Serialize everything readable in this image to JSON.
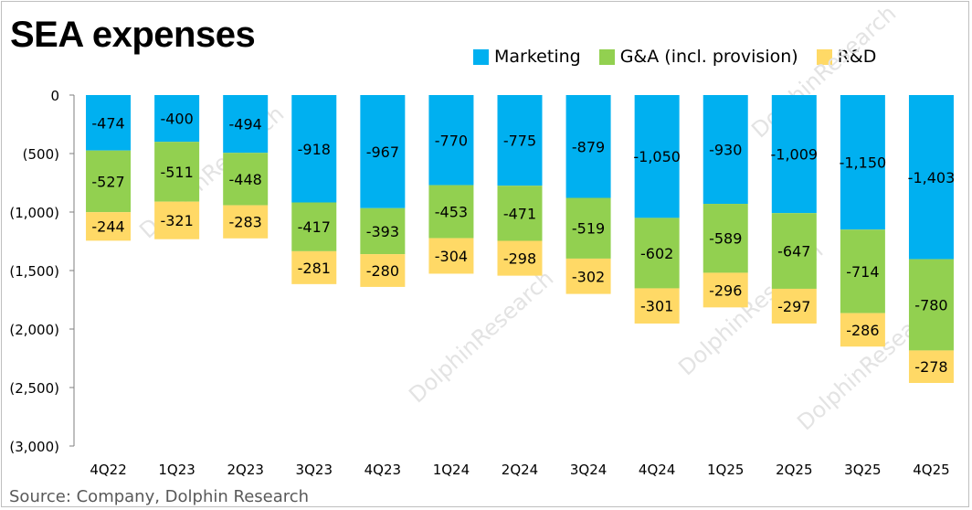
{
  "title": "SEA expenses",
  "source": "Source: Company, Dolphin Research",
  "watermark": "DolphinResearch",
  "colors": {
    "marketing": "#00b0f0",
    "ga": "#92d050",
    "rd": "#ffd966"
  },
  "legend": [
    {
      "key": "marketing",
      "label": "Marketing"
    },
    {
      "key": "ga",
      "label": "G&A (incl. provision)"
    },
    {
      "key": "rd",
      "label": "R&D"
    }
  ],
  "chart_data": {
    "type": "bar",
    "stacked": true,
    "title": "SEA expenses",
    "xlabel": "",
    "ylabel": "",
    "categories": [
      "4Q22",
      "1Q23",
      "2Q23",
      "3Q23",
      "4Q23",
      "1Q24",
      "2Q24",
      "3Q24",
      "4Q24",
      "1Q25",
      "2Q25",
      "3Q25",
      "4Q25"
    ],
    "series": [
      {
        "name": "Marketing",
        "key": "marketing",
        "values": [
          -474,
          -400,
          -494,
          -918,
          -967,
          -770,
          -775,
          -879,
          -1050,
          -930,
          -1009,
          -1150,
          -1403
        ],
        "labels": [
          "-474",
          "-400",
          "-494",
          "-918",
          "-967",
          "-770",
          "-775",
          "-879",
          "-1,050",
          "-930",
          "-1,009",
          "-1,150",
          "-1,403"
        ]
      },
      {
        "name": "G&A (incl. provision)",
        "key": "ga",
        "values": [
          -527,
          -511,
          -448,
          -417,
          -393,
          -453,
          -471,
          -519,
          -602,
          -589,
          -647,
          -714,
          -780
        ],
        "labels": [
          "-527",
          "-511",
          "-448",
          "-417",
          "-393",
          "-453",
          "-471",
          "-519",
          "-602",
          "-589",
          "-647",
          "-714",
          "-780"
        ]
      },
      {
        "name": "R&D",
        "key": "rd",
        "values": [
          -244,
          -321,
          -283,
          -281,
          -280,
          -304,
          -298,
          -302,
          -301,
          -296,
          -297,
          -286,
          -278
        ],
        "labels": [
          "-244",
          "-321",
          "-283",
          "-281",
          "-280",
          "-304",
          "-298",
          "-302",
          "-301",
          "-296",
          "-297",
          "-286",
          "-278"
        ]
      }
    ],
    "ylim": [
      -3000,
      0
    ],
    "yticks": [
      0,
      -500,
      -1000,
      -1500,
      -2000,
      -2500,
      -3000
    ],
    "ytick_labels": [
      "0",
      "(500)",
      "(1,000)",
      "(1,500)",
      "(2,000)",
      "(2,500)",
      "(3,000)"
    ],
    "grid": false,
    "legend_position": "top-right"
  }
}
